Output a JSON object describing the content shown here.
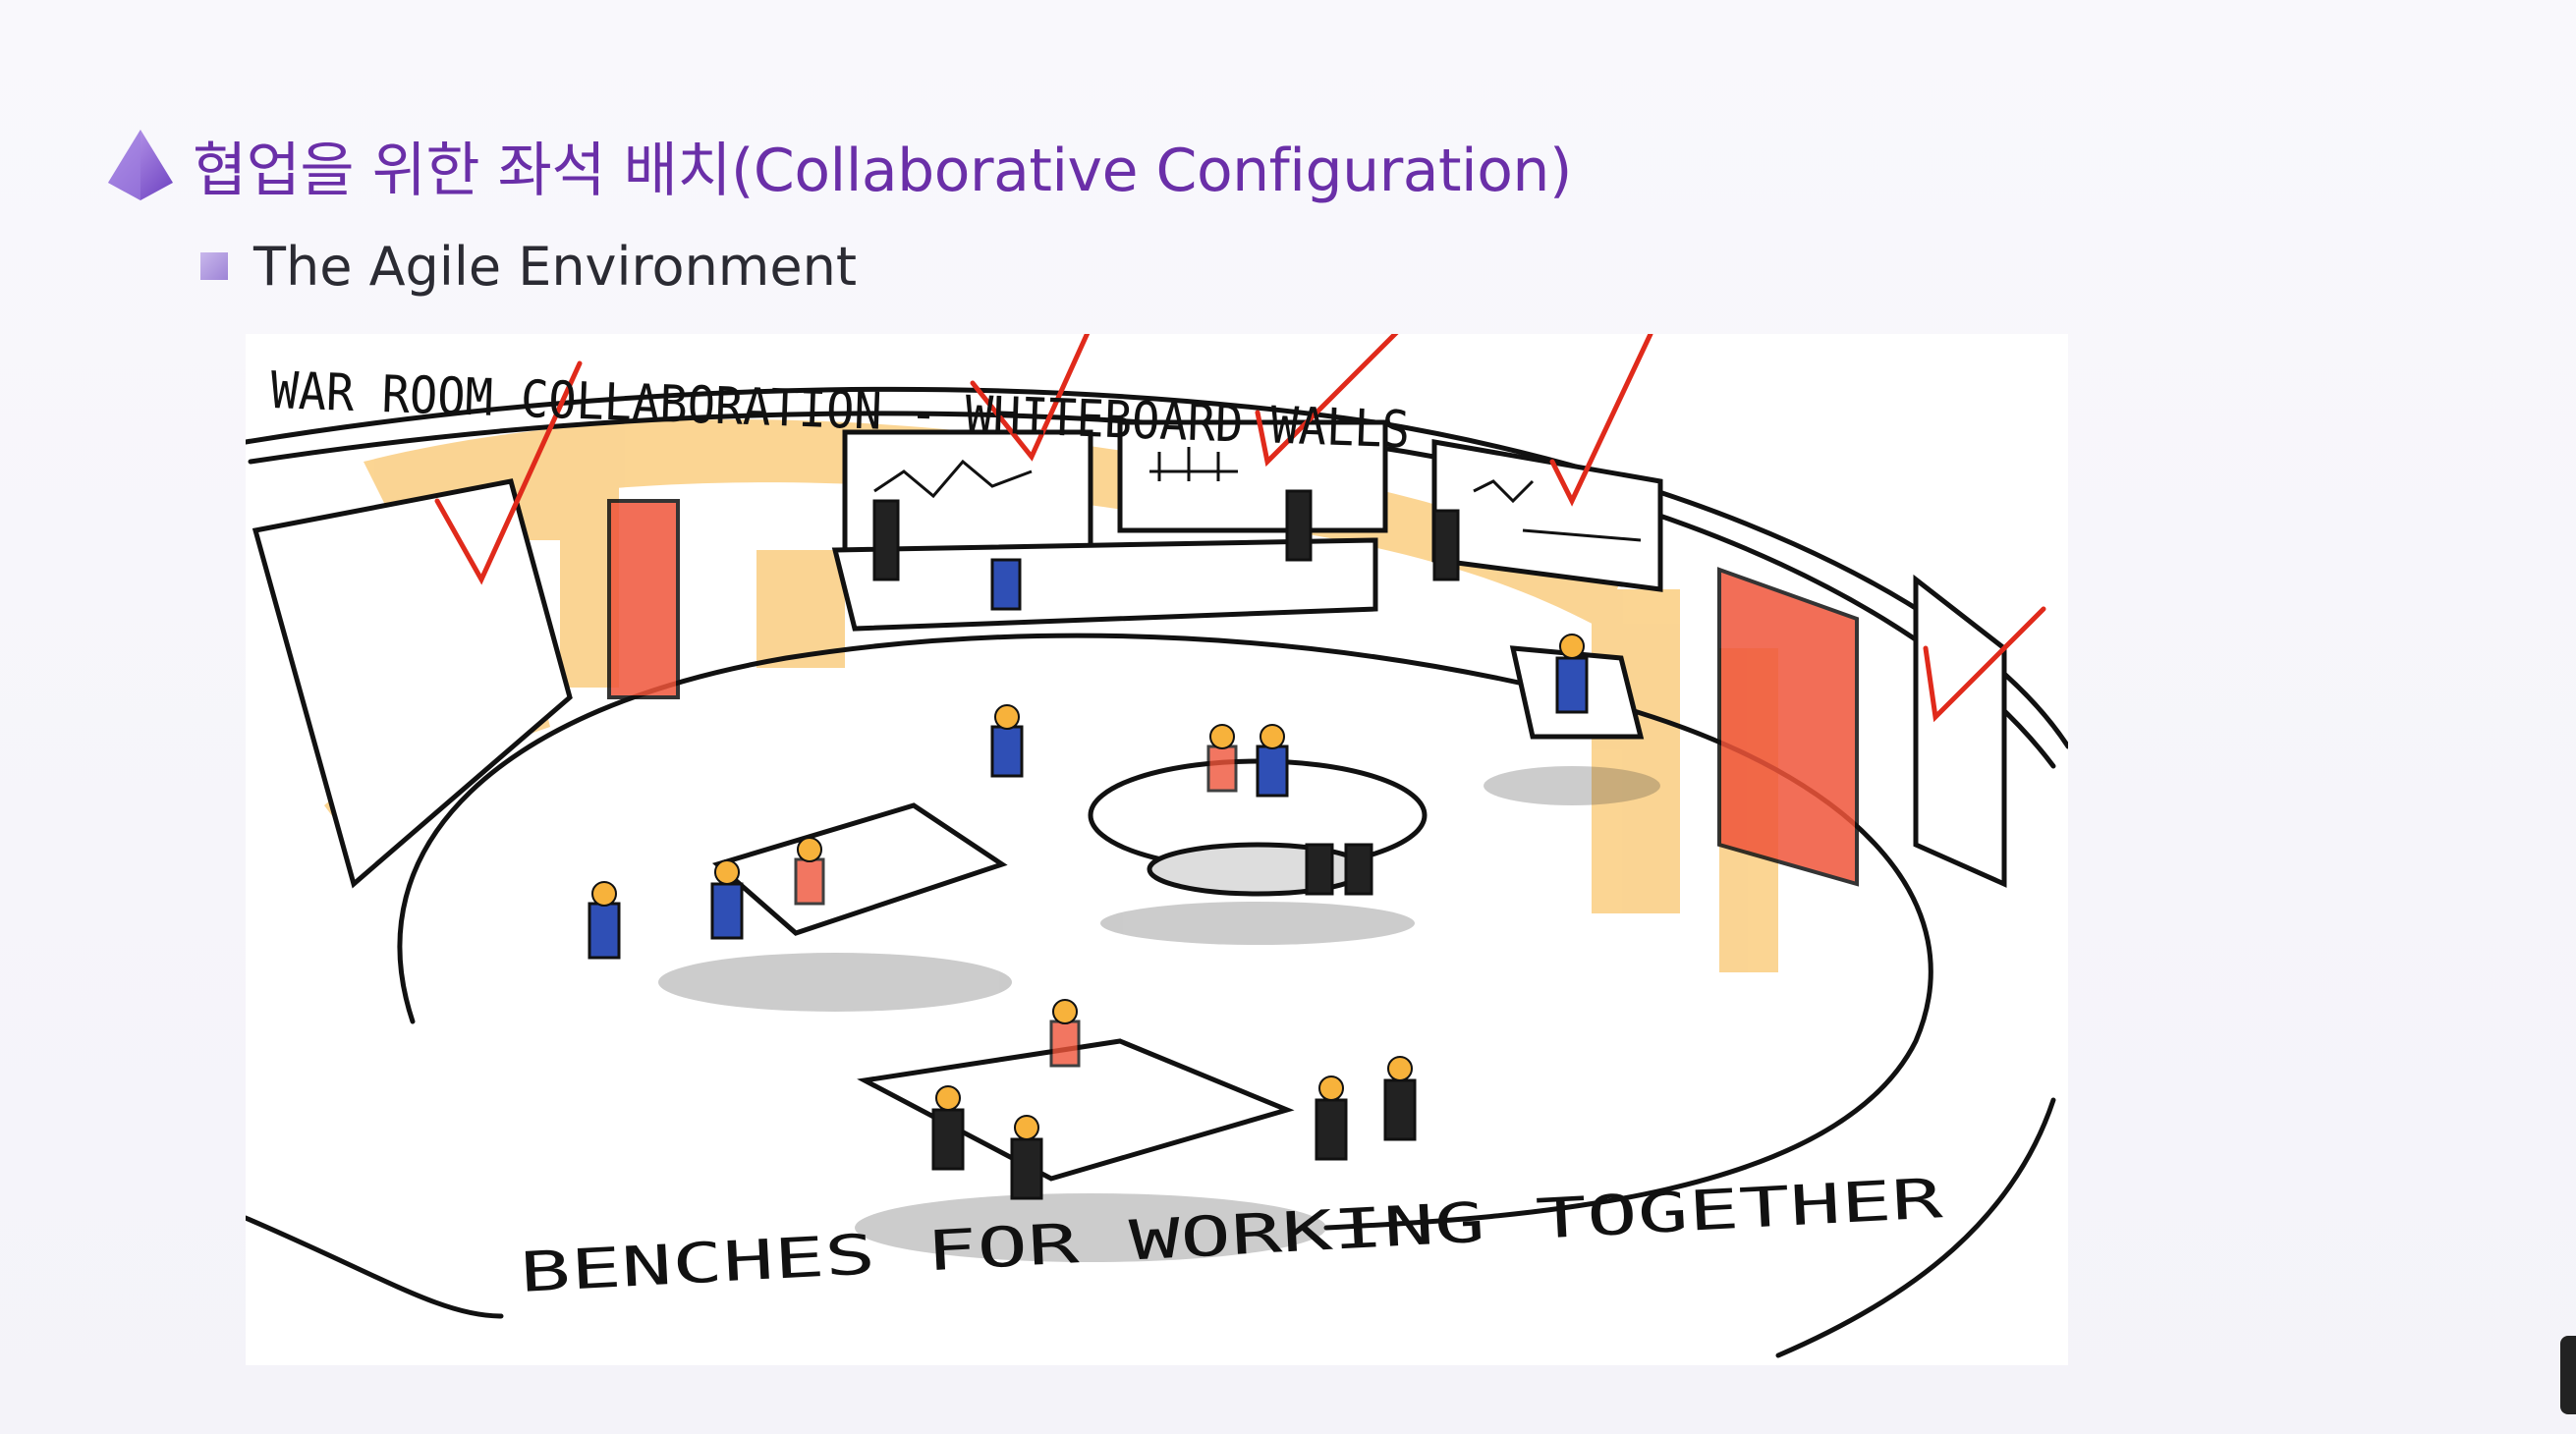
{
  "slide": {
    "title": "협업을 위한 좌석 배치(Collaborative Configuration)",
    "subtitle": "The Agile Environment"
  },
  "sketch": {
    "label_top": "WAR ROOM COLLABORATION - WHITEBOARD WALLS",
    "label_bottom": "BENCHES FOR WORKING TOGETHER"
  },
  "colors": {
    "title": "#6a2fa8",
    "highlight_orange": "#f7b23b",
    "door_red": "#f0553a",
    "check_red": "#e02a1b",
    "shirt_blue": "#2f4fb5"
  }
}
